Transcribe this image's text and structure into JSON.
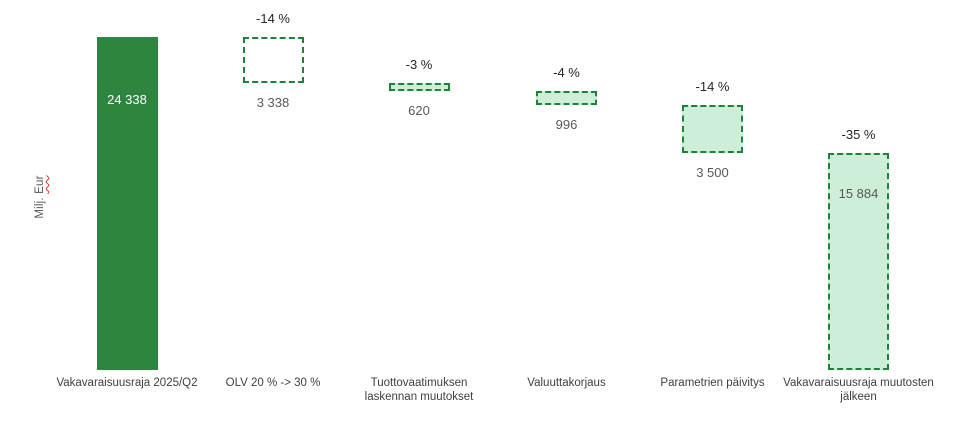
{
  "page": {
    "background": "#ffffff"
  },
  "chart_data": {
    "type": "bar",
    "subtype": "waterfall",
    "title": "",
    "xlabel": "",
    "ylabel": "Milj. Eur",
    "ylabel_parts": {
      "prefix": "Milj. ",
      "flagged": "Eur"
    },
    "ylim": [
      0,
      24338
    ],
    "grid": false,
    "legend": false,
    "start_value": 24338,
    "end_value": 15884,
    "colors": {
      "solid_fill": "#2e8540",
      "dash_border": "#1e8238",
      "light_fill": "#cdeed7",
      "pct_text": "#262626",
      "value_text": "#595959",
      "category_text": "#404040",
      "inside_solid_text": "#ffffff",
      "spellcheck_underline": "#e0301e"
    },
    "bars": [
      {
        "category": "Vakavaraisuusraja 2025/Q2",
        "segment_top": 24338,
        "segment_bottom": 0,
        "delta": 24338,
        "value_label": "24 338",
        "pct_label": "",
        "style": "solid",
        "value_label_position": "inside"
      },
      {
        "category": "OLV 20 % -> 30 %",
        "segment_top": 24338,
        "segment_bottom": 21000,
        "delta": -3338,
        "value_label": "3 338",
        "pct_label": "-14 %",
        "style": "dashed-outline",
        "value_label_position": "below"
      },
      {
        "category": "Tuottovaatimuksen laskennan muutokset",
        "segment_top": 21000,
        "segment_bottom": 20380,
        "delta": -620,
        "value_label": "620",
        "pct_label": "-3 %",
        "style": "dashed-filled",
        "value_label_position": "below"
      },
      {
        "category": "Valuuttakorjaus",
        "segment_top": 20380,
        "segment_bottom": 19384,
        "delta": -996,
        "value_label": "996",
        "pct_label": "-4 %",
        "style": "dashed-filled",
        "value_label_position": "below"
      },
      {
        "category": "Parametrien päivitys",
        "segment_top": 19384,
        "segment_bottom": 15884,
        "delta": -3500,
        "value_label": "3 500",
        "pct_label": "-14 %",
        "style": "dashed-filled",
        "value_label_position": "below"
      },
      {
        "category": "Vakavaraisuusraja muutosten jälkeen",
        "segment_top": 15884,
        "segment_bottom": 0,
        "delta": 15884,
        "value_label": "15 884",
        "pct_label": "-35 %",
        "style": "dashed-filled",
        "value_label_position": "inside"
      }
    ]
  }
}
